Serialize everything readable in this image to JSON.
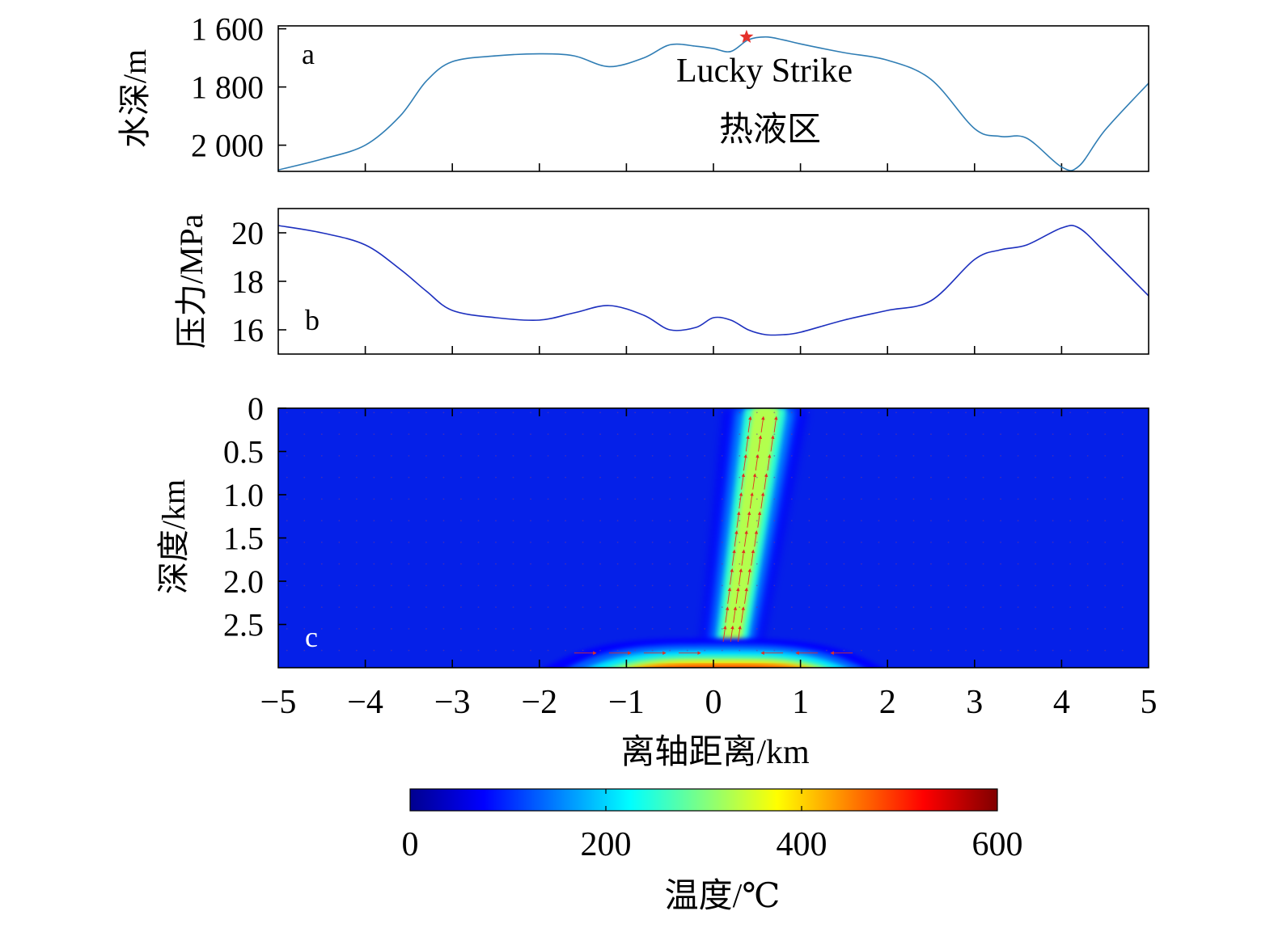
{
  "chart_data": [
    {
      "type": "line",
      "panel_label": "a",
      "ylabel": "水深/m",
      "y_reversed": true,
      "ylim": [
        2090,
        1590
      ],
      "xlim": [
        -5,
        5
      ],
      "yticks": [
        1600,
        1800,
        2000
      ],
      "ytick_labels": [
        "1 600",
        "1 800",
        "2 000"
      ],
      "color": "#2f7db4",
      "annotation": {
        "text_line1": "Lucky Strike",
        "text_line2": "热液区",
        "marker": "star",
        "marker_color": "#e5312b",
        "marker_x": 0.38,
        "marker_y": 1628
      },
      "series": [
        {
          "x": [
            -5,
            -4.5,
            -4,
            -3.6,
            -3.3,
            -3,
            -2.5,
            -2,
            -1.6,
            -1.2,
            -0.8,
            -0.5,
            -0.2,
            0,
            0.2,
            0.4,
            0.6,
            0.8,
            1.0,
            1.5,
            2.0,
            2.5,
            3.0,
            3.3,
            3.6,
            4.0,
            4.2,
            4.5,
            5
          ],
          "y": [
            2085,
            2048,
            2000,
            1900,
            1780,
            1713,
            1693,
            1686,
            1693,
            1730,
            1700,
            1655,
            1660,
            1668,
            1678,
            1638,
            1628,
            1638,
            1652,
            1682,
            1708,
            1774,
            1943,
            1970,
            1976,
            2075,
            2072,
            1948,
            1787
          ]
        }
      ]
    },
    {
      "type": "line",
      "panel_label": "b",
      "ylabel": "压力/MPa",
      "ylim": [
        15,
        21
      ],
      "xlim": [
        -5,
        5
      ],
      "yticks": [
        16,
        18,
        20
      ],
      "color": "#1c2fbe",
      "series": [
        {
          "x": [
            -5,
            -4.5,
            -4,
            -3.6,
            -3.3,
            -3,
            -2.5,
            -2,
            -1.6,
            -1.2,
            -0.8,
            -0.5,
            -0.2,
            0,
            0.2,
            0.4,
            0.6,
            0.8,
            1.0,
            1.5,
            2.0,
            2.5,
            3.0,
            3.3,
            3.6,
            4.0,
            4.2,
            4.5,
            5
          ],
          "y": [
            20.3,
            20.0,
            19.5,
            18.5,
            17.6,
            16.8,
            16.5,
            16.4,
            16.7,
            17.0,
            16.6,
            16.0,
            16.1,
            16.5,
            16.4,
            16.0,
            15.8,
            15.8,
            15.9,
            16.4,
            16.8,
            17.2,
            18.9,
            19.3,
            19.5,
            20.2,
            20.2,
            19.2,
            17.4
          ]
        }
      ]
    },
    {
      "type": "heatmap",
      "panel_label": "c",
      "xlabel": "离轴距离/km",
      "ylabel": "深度/km",
      "xlim": [
        -5,
        5
      ],
      "ylim": [
        3.0,
        0
      ],
      "xticks": [
        -5,
        -4,
        -3,
        -2,
        -1,
        0,
        1,
        2,
        3,
        4,
        5
      ],
      "xtick_labels": [
        "−5",
        "−4",
        "−3",
        "−2",
        "−1",
        "0",
        "1",
        "2",
        "3",
        "4",
        "5"
      ],
      "yticks": [
        0,
        0.5,
        1.0,
        1.5,
        2.0,
        2.5
      ],
      "ytick_labels": [
        "0",
        "0.5",
        "1.0",
        "1.5",
        "2.0",
        "2.5"
      ],
      "color_variable": "温度/℃",
      "colorbar": {
        "min": 0,
        "max": 600,
        "ticks": [
          "0",
          "200",
          "400",
          "600"
        ],
        "label": "温度/℃",
        "colormap": "jet"
      },
      "features": {
        "basal_heat_source": {
          "x_range": [
            -2.0,
            2.0
          ],
          "depth_range": [
            2.75,
            3.0
          ],
          "max_temperature": 480
        },
        "upflow_plume": {
          "base_x": 0.2,
          "top_x": 0.6,
          "base_half_width": 0.18,
          "top_half_width": 0.25,
          "core_temperature": 330
        },
        "flow_vectors_color": "#e03020"
      }
    }
  ]
}
